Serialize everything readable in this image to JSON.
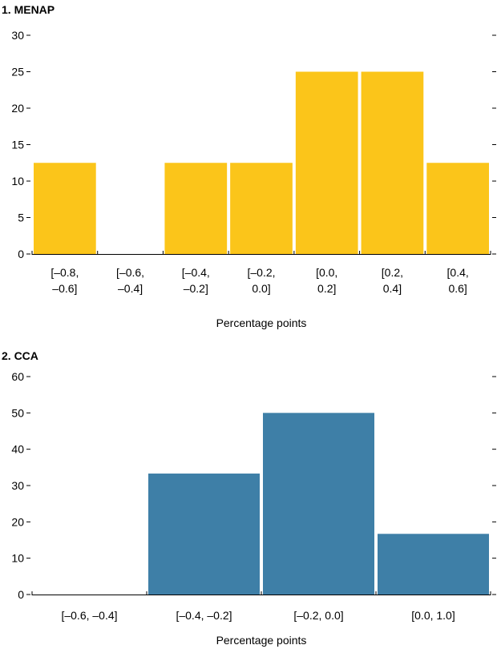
{
  "chart_data": [
    {
      "type": "bar",
      "title": "1. MENAP",
      "xlabel": "Percentage points",
      "ylabel": "",
      "ylim": [
        0,
        30
      ],
      "yticks": [
        0,
        5,
        10,
        15,
        20,
        25,
        30
      ],
      "categories": [
        [
          "[–0.8,",
          "–0.6]"
        ],
        [
          "[–0.6,",
          "–0.4]"
        ],
        [
          "[–0.4,",
          "–0.2]"
        ],
        [
          "[–0.2,",
          "0.0]"
        ],
        [
          "[0.0,",
          "0.2]"
        ],
        [
          "[0.2,",
          "0.4]"
        ],
        [
          "[0.4,",
          "0.6]"
        ]
      ],
      "values": [
        12.5,
        0,
        12.5,
        12.5,
        25,
        25,
        12.5
      ],
      "color": "#FBC51A",
      "grid": false,
      "legend": "none"
    },
    {
      "type": "bar",
      "title": "2. CCA",
      "xlabel": "Percentage points",
      "ylabel": "",
      "ylim": [
        0,
        60
      ],
      "yticks": [
        0,
        10,
        20,
        30,
        40,
        50,
        60
      ],
      "categories": [
        [
          "[–0.6, –0.4]"
        ],
        [
          "[–0.4, –0.2]"
        ],
        [
          "[–0.2, 0.0]"
        ],
        [
          "[0.0, 1.0]"
        ]
      ],
      "values": [
        0,
        33.3,
        50,
        16.7
      ],
      "color": "#3E7FA7",
      "grid": false,
      "legend": "none"
    }
  ]
}
